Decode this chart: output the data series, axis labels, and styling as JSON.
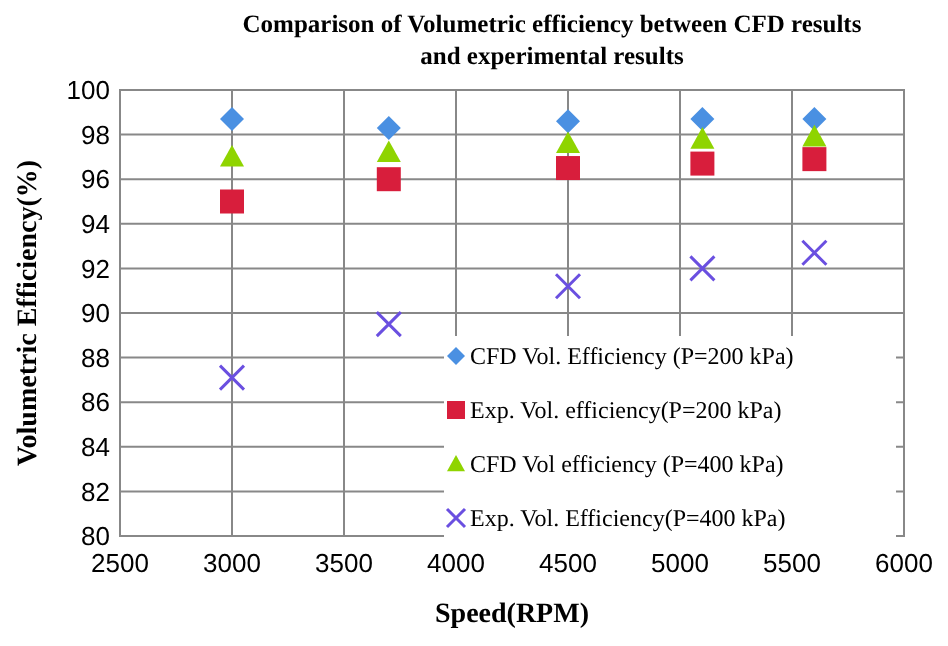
{
  "chart_data": {
    "type": "scatter",
    "title": "Comparison of Volumetric efficiency between CFD results and experimental results",
    "xlabel": "Speed(RPM)",
    "ylabel": "Volumetric Efficiency(%)",
    "x": [
      3000,
      3700,
      4500,
      5100,
      5600
    ],
    "series": [
      {
        "name": "CFD Vol. Efficiency (P=200 kPa)",
        "color": "#4a90e2",
        "marker": "diamond",
        "values": [
          98.7,
          98.3,
          98.6,
          98.7,
          98.7
        ]
      },
      {
        "name": "Exp. Vol. efficiency(P=200 kPa)",
        "color": "#d81e3c",
        "marker": "square",
        "values": [
          95.0,
          96.0,
          96.5,
          96.7,
          96.9
        ]
      },
      {
        "name": "CFD Vol efficiency (P=400 kPa)",
        "color": "#8fd400",
        "marker": "triangle",
        "values": [
          97.0,
          97.2,
          97.6,
          97.8,
          97.9
        ]
      },
      {
        "name": "Exp. Vol. Efficiency(P=400 kPa)",
        "color": "#6a4fe0",
        "marker": "cross",
        "values": [
          87.1,
          89.5,
          91.2,
          92.0,
          92.7
        ]
      }
    ],
    "xlim": [
      2500,
      6000
    ],
    "xticks": [
      2500,
      3000,
      3500,
      4000,
      4500,
      5000,
      5500,
      6000
    ],
    "ylim": [
      80,
      100
    ],
    "yticks": [
      80,
      82,
      84,
      86,
      88,
      90,
      92,
      94,
      96,
      98,
      100
    ],
    "grid": true,
    "legend": "bottom right"
  }
}
